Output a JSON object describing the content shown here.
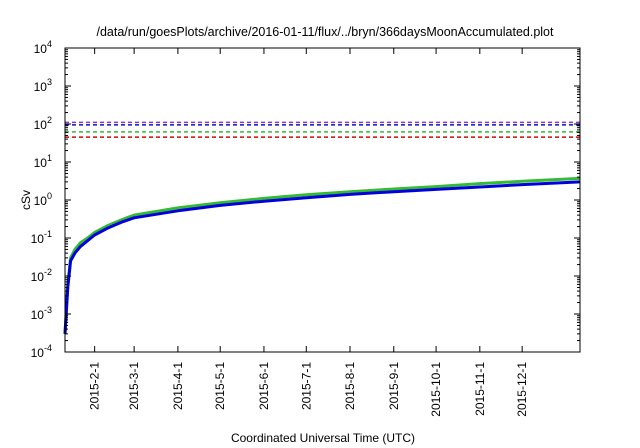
{
  "chart_data": {
    "type": "line",
    "title": "/data/run/goesPlots/archive/2016-01-11/flux/../bryn/366daysMoonAccumulated.plot",
    "xlabel": "Coordinated Universal Time (UTC)",
    "ylabel": "cSv",
    "yscale": "log",
    "ylim": [
      0.0001,
      10000
    ],
    "xlim": [
      "2015-01-11",
      "2016-01-11"
    ],
    "grid": false,
    "legend": "none",
    "yticks": [
      {
        "base": "10",
        "exp": "-4",
        "value": 0.0001
      },
      {
        "base": "10",
        "exp": "-3",
        "value": 0.001
      },
      {
        "base": "10",
        "exp": "-2",
        "value": 0.01
      },
      {
        "base": "10",
        "exp": "-1",
        "value": 0.1
      },
      {
        "base": "10",
        "exp": "0",
        "value": 1
      },
      {
        "base": "10",
        "exp": "1",
        "value": 10
      },
      {
        "base": "10",
        "exp": "2",
        "value": 100
      },
      {
        "base": "10",
        "exp": "3",
        "value": 1000
      },
      {
        "base": "10",
        "exp": "4",
        "value": 10000
      }
    ],
    "xticks": [
      {
        "label": "2015-2-1",
        "date": "2015-02-01"
      },
      {
        "label": "2015-3-1",
        "date": "2015-03-01"
      },
      {
        "label": "2015-4-1",
        "date": "2015-04-01"
      },
      {
        "label": "2015-5-1",
        "date": "2015-05-01"
      },
      {
        "label": "2015-6-1",
        "date": "2015-06-01"
      },
      {
        "label": "2015-7-1",
        "date": "2015-07-01"
      },
      {
        "label": "2015-8-1",
        "date": "2015-08-01"
      },
      {
        "label": "2015-9-1",
        "date": "2015-09-01"
      },
      {
        "label": "2015-10-1",
        "date": "2015-10-01"
      },
      {
        "label": "2015-11-1",
        "date": "2015-11-01"
      },
      {
        "label": "2015-12-1",
        "date": "2015-12-01"
      }
    ],
    "series": [
      {
        "color": "#33bb33",
        "width": 3,
        "points": [
          [
            "2015-01-11",
            0.0003
          ],
          [
            "2015-01-12",
            0.0015
          ],
          [
            "2015-01-13",
            0.006
          ],
          [
            "2015-01-15",
            0.03
          ],
          [
            "2015-01-18",
            0.05
          ],
          [
            "2015-01-22",
            0.075
          ],
          [
            "2015-01-27",
            0.1
          ],
          [
            "2015-02-01",
            0.14
          ],
          [
            "2015-02-10",
            0.21
          ],
          [
            "2015-02-20",
            0.3
          ],
          [
            "2015-03-01",
            0.4
          ],
          [
            "2015-04-01",
            0.62
          ],
          [
            "2015-05-01",
            0.85
          ],
          [
            "2015-06-01",
            1.1
          ],
          [
            "2015-07-01",
            1.38
          ],
          [
            "2015-08-01",
            1.65
          ],
          [
            "2015-09-01",
            1.95
          ],
          [
            "2015-10-01",
            2.25
          ],
          [
            "2015-11-01",
            2.7
          ],
          [
            "2015-12-01",
            3.1
          ],
          [
            "2016-01-11",
            3.7
          ]
        ]
      },
      {
        "color": "#0000dd",
        "width": 3,
        "points": [
          [
            "2015-01-11",
            0.0003
          ],
          [
            "2015-01-12",
            0.0012
          ],
          [
            "2015-01-13",
            0.005
          ],
          [
            "2015-01-15",
            0.025
          ],
          [
            "2015-01-18",
            0.04
          ],
          [
            "2015-01-22",
            0.06
          ],
          [
            "2015-01-27",
            0.085
          ],
          [
            "2015-02-01",
            0.12
          ],
          [
            "2015-02-10",
            0.18
          ],
          [
            "2015-02-20",
            0.26
          ],
          [
            "2015-03-01",
            0.34
          ],
          [
            "2015-04-01",
            0.52
          ],
          [
            "2015-05-01",
            0.72
          ],
          [
            "2015-06-01",
            0.93
          ],
          [
            "2015-07-01",
            1.15
          ],
          [
            "2015-08-01",
            1.4
          ],
          [
            "2015-09-01",
            1.65
          ],
          [
            "2015-10-01",
            1.9
          ],
          [
            "2015-11-01",
            2.2
          ],
          [
            "2015-12-01",
            2.55
          ],
          [
            "2016-01-11",
            3.0
          ]
        ]
      }
    ],
    "reference_lines": [
      {
        "color": "#9933cc",
        "y": 110
      },
      {
        "color": "#1111cc",
        "y": 95
      },
      {
        "color": "#33bb33",
        "y": 62
      },
      {
        "color": "#dd0000",
        "y": 45
      }
    ]
  }
}
